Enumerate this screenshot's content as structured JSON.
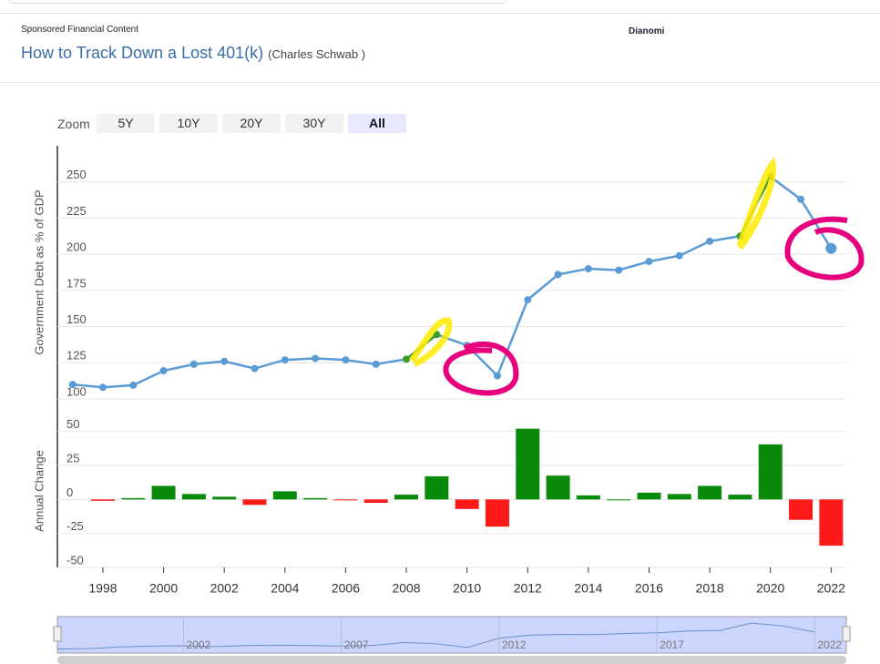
{
  "header": {
    "sponsor_label": "Sponsored Financial Content",
    "headline": "How to Track Down a Lost 401(k)",
    "source": "(Charles Schwab )",
    "brand": "Dianomi"
  },
  "zoom": {
    "label": "Zoom",
    "buttons": [
      "5Y",
      "10Y",
      "20Y",
      "30Y",
      "All"
    ],
    "active": "All"
  },
  "chart_data": [
    {
      "type": "line",
      "ylabel": "Government Debt as % of GDP",
      "x": [
        1997,
        1998,
        1999,
        2000,
        2001,
        2002,
        2003,
        2004,
        2005,
        2006,
        2007,
        2008,
        2009,
        2010,
        2011,
        2012,
        2013,
        2014,
        2015,
        2016,
        2017,
        2018,
        2019,
        2020,
        2021,
        2022
      ],
      "series": [
        {
          "color": "#5b9bd5",
          "values": [
            110,
            108,
            109.5,
            119.5,
            124,
            126,
            121,
            127,
            128,
            127,
            124,
            127.5,
            144.5,
            137,
            116,
            168.5,
            186,
            190,
            189,
            195,
            199,
            209,
            212.5,
            253.5,
            238,
            204
          ]
        }
      ],
      "highlight_color": "#3a9a2a",
      "highlight_x": [
        [
          2008,
          2009
        ],
        [
          2019,
          2020
        ]
      ],
      "xlim": [
        1996.5,
        2022.5
      ],
      "ylim": [
        100,
        275
      ],
      "yticks": [
        100,
        125,
        150,
        175,
        200,
        225,
        250
      ],
      "grid": true
    },
    {
      "type": "bar",
      "ylabel": "Annual Change",
      "x": [
        1997,
        1998,
        1999,
        2000,
        2001,
        2002,
        2003,
        2004,
        2005,
        2006,
        2007,
        2008,
        2009,
        2010,
        2011,
        2012,
        2013,
        2014,
        2015,
        2016,
        2017,
        2018,
        2019,
        2020,
        2021,
        2022
      ],
      "values": [
        null,
        -1,
        1,
        10,
        4,
        2,
        -4,
        6,
        1,
        -0.5,
        -2.5,
        3.5,
        17,
        -7,
        -20,
        52,
        17.5,
        3,
        0,
        5,
        4,
        10,
        3.5,
        40.5,
        -15,
        -34
      ],
      "positive_color": "#0a8a0a",
      "negative_color": "#ff1a1a",
      "xlim": [
        1996.5,
        2022.5
      ],
      "ylim": [
        -50,
        62.5
      ],
      "yticks": [
        -50,
        -25,
        0,
        25,
        50
      ],
      "xticks": [
        1998,
        2000,
        2002,
        2004,
        2006,
        2008,
        2010,
        2012,
        2014,
        2016,
        2018,
        2020,
        2022
      ],
      "grid": true
    }
  ],
  "navigator": {
    "xlim": [
      1998,
      2023
    ],
    "ticks": [
      2002,
      2007,
      2012,
      2017,
      2022
    ]
  }
}
